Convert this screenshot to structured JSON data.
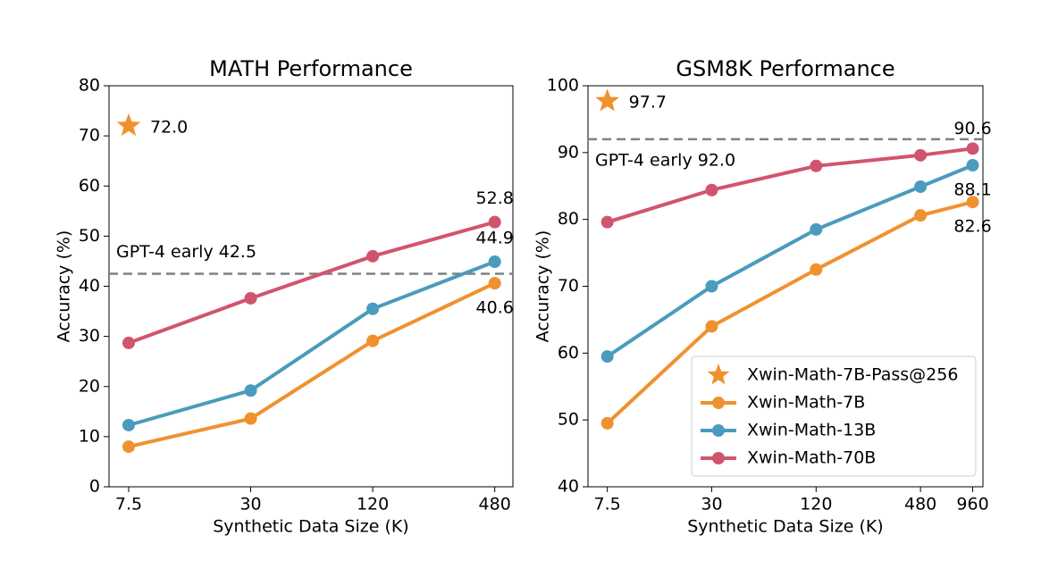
{
  "chart_data": [
    {
      "type": "line",
      "title": "MATH Performance",
      "xlabel": "Synthetic Data Size (K)",
      "ylabel": "Accuracy (%)",
      "x_scale": "log",
      "xlim": [
        6,
        590
      ],
      "ylim": [
        0,
        80
      ],
      "xticks": [
        7.5,
        30,
        120,
        480
      ],
      "yticks": [
        0,
        10,
        20,
        30,
        40,
        50,
        60,
        70,
        80
      ],
      "x": [
        7.5,
        30,
        120,
        480
      ],
      "series": [
        {
          "color": "#f0912f",
          "values": [
            8.0,
            13.6,
            29.1,
            40.6
          ],
          "value_labels": [
            null,
            null,
            null,
            "40.6"
          ]
        },
        {
          "color": "#4a9bbd",
          "values": [
            12.3,
            19.2,
            35.5,
            44.9
          ],
          "value_labels": [
            null,
            null,
            null,
            "44.9"
          ]
        },
        {
          "color": "#d1546e",
          "values": [
            28.7,
            37.6,
            46.0,
            52.8
          ],
          "value_labels": [
            null,
            null,
            null,
            "52.8"
          ]
        }
      ],
      "reference_line": {
        "value": 42.5,
        "label": "GPT-4 early 42.5",
        "color": "#808080"
      },
      "highlight": {
        "x": 7.5,
        "y": 72.0,
        "value_label": "72.0",
        "color": "#f0912f"
      }
    },
    {
      "type": "line",
      "title": "GSM8K Performance",
      "xlabel": "Synthetic Data Size (K)",
      "ylabel": "Accuracy (%)",
      "x_scale": "log",
      "xlim": [
        5.8,
        1100
      ],
      "ylim": [
        40,
        100
      ],
      "xticks": [
        7.5,
        30,
        120,
        480,
        960
      ],
      "yticks": [
        40,
        50,
        60,
        70,
        80,
        90,
        100
      ],
      "x": [
        7.5,
        30,
        120,
        480,
        960
      ],
      "series": [
        {
          "name": "Xwin-Math-7B",
          "color": "#f0912f",
          "values": [
            49.5,
            64.0,
            72.5,
            80.6,
            82.6
          ],
          "value_labels": [
            null,
            null,
            null,
            null,
            "82.6"
          ]
        },
        {
          "name": "Xwin-Math-13B",
          "color": "#4a9bbd",
          "values": [
            59.5,
            70.0,
            78.5,
            84.9,
            88.1
          ],
          "value_labels": [
            null,
            null,
            null,
            null,
            "88.1"
          ]
        },
        {
          "name": "Xwin-Math-70B",
          "color": "#d1546e",
          "values": [
            79.6,
            84.4,
            88.0,
            89.6,
            90.6
          ],
          "value_labels": [
            null,
            null,
            null,
            null,
            "90.6"
          ]
        }
      ],
      "reference_line": {
        "value": 92.0,
        "label": "GPT-4 early 92.0",
        "color": "#808080"
      },
      "highlight": {
        "name": "Xwin-Math-7B-Pass@256",
        "x": 7.5,
        "y": 97.7,
        "value_label": "97.7",
        "color": "#f0912f"
      },
      "legend": "lower right"
    }
  ]
}
